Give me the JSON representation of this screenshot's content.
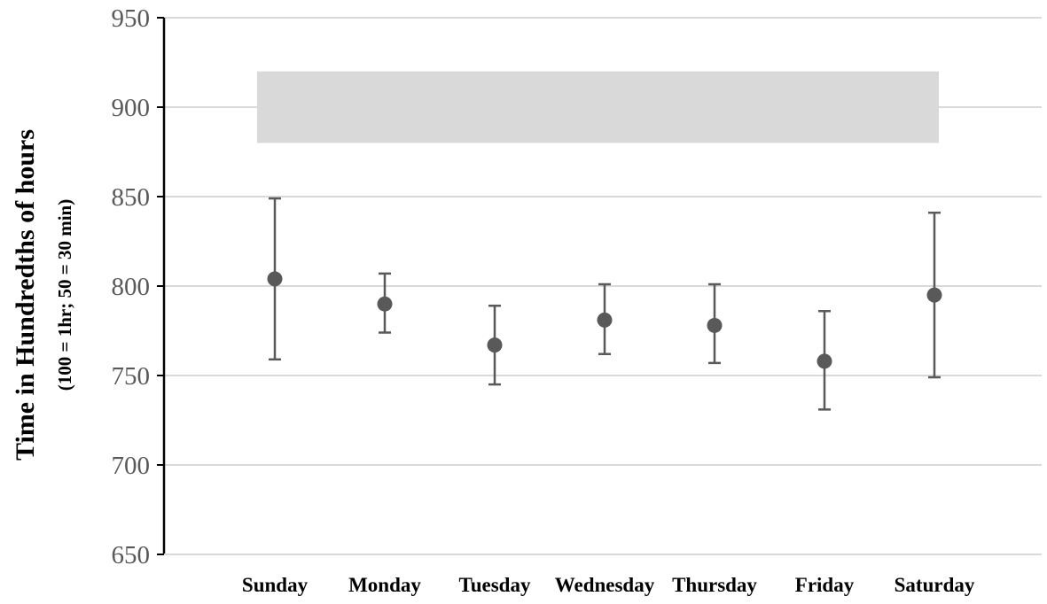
{
  "chart_data": {
    "type": "scatter",
    "title": "",
    "xlabel": "",
    "ylabel": "Time in Hundredths of hours",
    "ylabel_sub": "(100 = 1hr; 50 = 30 min)",
    "ylim": [
      650,
      950
    ],
    "yticks": [
      650,
      700,
      750,
      800,
      850,
      900,
      950
    ],
    "grid": true,
    "categories": [
      "Sunday",
      "Monday",
      "Tuesday",
      "Wednesday",
      "Thursday",
      "Friday",
      "Saturday"
    ],
    "values": [
      804,
      790,
      767,
      781,
      778,
      758,
      795
    ],
    "error_low": [
      759,
      774,
      745,
      762,
      757,
      731,
      749
    ],
    "error_high": [
      849,
      807,
      789,
      801,
      801,
      786,
      841
    ],
    "reference_band": {
      "from_category": "Sunday",
      "to_category": "Saturday",
      "y_low": 880,
      "y_high": 920,
      "color": "#d9d9d9"
    },
    "colors": {
      "marker": "#595959",
      "errorbar": "#595959",
      "grid": "#d9d9d9",
      "axis": "#000000"
    }
  }
}
